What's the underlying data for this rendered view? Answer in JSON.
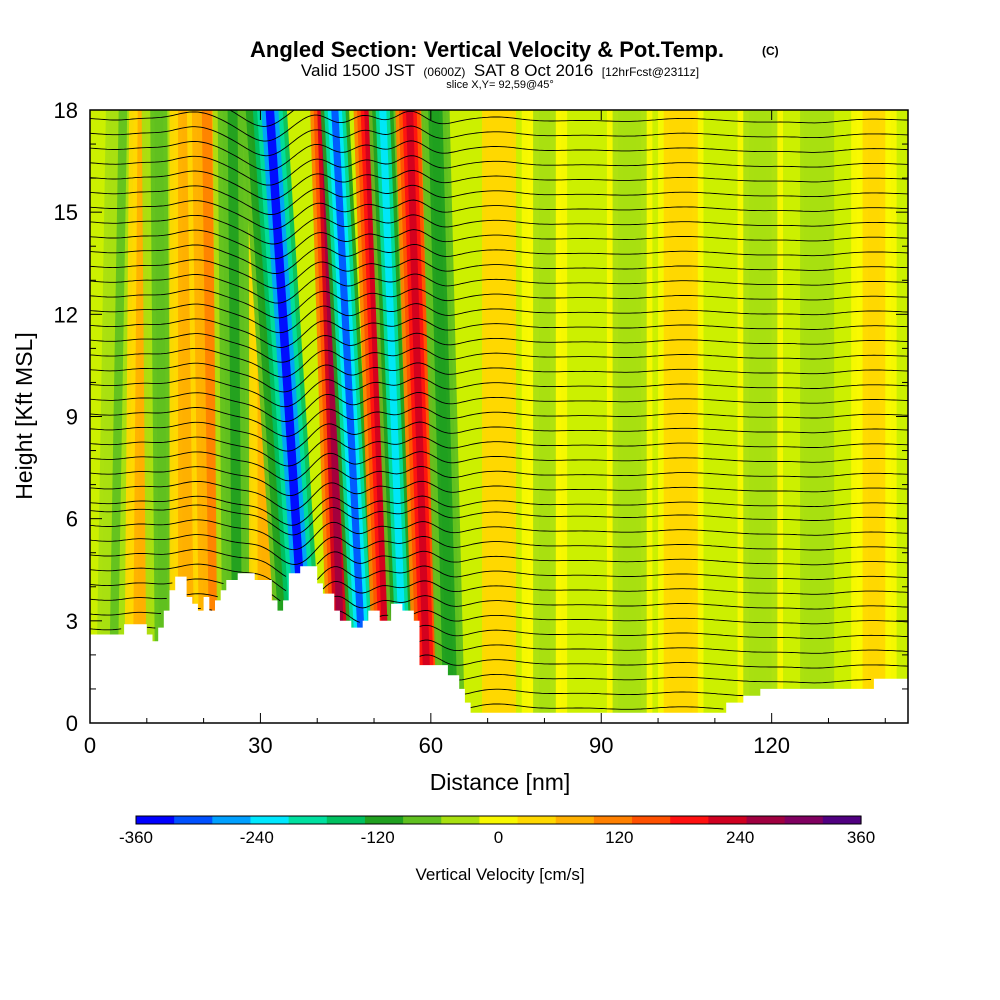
{
  "chart_data": {
    "type": "heatmap",
    "title": "Angled Section: Vertical Velocity & Pot.Temp.",
    "title_unit": "(C)",
    "subtitle_parts": [
      "Valid 1500 JST",
      "(0600Z)",
      "SAT 8 Oct 2016",
      "[12hrFcst@2311z]"
    ],
    "slice_info": "slice X,Y= 92,59@45°",
    "xlabel": "Distance [nm]",
    "ylabel": "Height [Kft MSL]",
    "xlim": [
      0,
      144
    ],
    "ylim": [
      0,
      18
    ],
    "x_ticks": [
      "0",
      "30",
      "60",
      "90",
      "120"
    ],
    "y_ticks": [
      "0",
      "3",
      "6",
      "9",
      "12",
      "15",
      "18"
    ],
    "colorbar": {
      "label": "Vertical Velocity [cm/s]",
      "ticks": [
        "-360",
        "-240",
        "-120",
        "0",
        "120",
        "240",
        "360"
      ],
      "range": [
        -360,
        360
      ],
      "colors": [
        "#0000ff",
        "#0050ff",
        "#00a0ff",
        "#00e8ff",
        "#00e0a0",
        "#00c060",
        "#20a020",
        "#60c020",
        "#a8e010",
        "#f8f800",
        "#ffd800",
        "#ffb000",
        "#ff8000",
        "#ff5000",
        "#ff1010",
        "#d00020",
        "#a00040",
        "#800060",
        "#500080"
      ]
    },
    "terrain_kft": [
      [
        0,
        2.6
      ],
      [
        6,
        2.6
      ],
      [
        6,
        2.9
      ],
      [
        10,
        2.9
      ],
      [
        10,
        2.6
      ],
      [
        11,
        2.6
      ],
      [
        11,
        2.4
      ],
      [
        12,
        2.4
      ],
      [
        12,
        2.8
      ],
      [
        13,
        2.8
      ],
      [
        13,
        3.3
      ],
      [
        14,
        3.3
      ],
      [
        14,
        3.9
      ],
      [
        15,
        3.9
      ],
      [
        15,
        4.3
      ],
      [
        17,
        4.3
      ],
      [
        17,
        3.7
      ],
      [
        18,
        3.7
      ],
      [
        18,
        3.5
      ],
      [
        19,
        3.5
      ],
      [
        19,
        3.3
      ],
      [
        20,
        3.3
      ],
      [
        20,
        3.7
      ],
      [
        21,
        3.7
      ],
      [
        21,
        3.3
      ],
      [
        22,
        3.3
      ],
      [
        22,
        3.6
      ],
      [
        23,
        3.6
      ],
      [
        23,
        3.9
      ],
      [
        24,
        3.9
      ],
      [
        24,
        4.2
      ],
      [
        26,
        4.2
      ],
      [
        26,
        4.4
      ],
      [
        29,
        4.4
      ],
      [
        29,
        4.2
      ],
      [
        32,
        4.2
      ],
      [
        32,
        3.6
      ],
      [
        33,
        3.6
      ],
      [
        33,
        3.3
      ],
      [
        34,
        3.3
      ],
      [
        34,
        3.6
      ],
      [
        35,
        3.6
      ],
      [
        35,
        4.4
      ],
      [
        37,
        4.4
      ],
      [
        37,
        4.6
      ],
      [
        40,
        4.6
      ],
      [
        40,
        4.1
      ],
      [
        41,
        4.1
      ],
      [
        41,
        3.8
      ],
      [
        43,
        3.8
      ],
      [
        43,
        3.3
      ],
      [
        44,
        3.3
      ],
      [
        44,
        3.0
      ],
      [
        46,
        3.0
      ],
      [
        46,
        2.8
      ],
      [
        48,
        2.8
      ],
      [
        48,
        3.0
      ],
      [
        49,
        3.0
      ],
      [
        49,
        3.3
      ],
      [
        51,
        3.3
      ],
      [
        51,
        3.0
      ],
      [
        53,
        3.0
      ],
      [
        53,
        3.5
      ],
      [
        55,
        3.5
      ],
      [
        55,
        3.3
      ],
      [
        57,
        3.3
      ],
      [
        57,
        3.0
      ],
      [
        58,
        3.0
      ],
      [
        58,
        1.7
      ],
      [
        63,
        1.7
      ],
      [
        63,
        1.4
      ],
      [
        65,
        1.4
      ],
      [
        65,
        1.0
      ],
      [
        66,
        1.0
      ],
      [
        66,
        0.6
      ],
      [
        67,
        0.6
      ],
      [
        67,
        0.3
      ],
      [
        112,
        0.3
      ],
      [
        112,
        0.6
      ],
      [
        115,
        0.6
      ],
      [
        115,
        0.8
      ],
      [
        118,
        0.8
      ],
      [
        118,
        1.0
      ],
      [
        138,
        1.0
      ],
      [
        138,
        1.3
      ],
      [
        144,
        1.3
      ]
    ],
    "velocity_bands": [
      {
        "x": 4,
        "w": 3,
        "lean": 0.1,
        "v": -60
      },
      {
        "x": 9,
        "w": 3,
        "lean": 0.05,
        "v": 80
      },
      {
        "x": 13,
        "w": 3,
        "lean": -0.05,
        "v": -80
      },
      {
        "x": 17,
        "w": 3,
        "lean": 0.0,
        "v": 70
      },
      {
        "x": 22,
        "w": 3.5,
        "lean": -0.08,
        "v": 110
      },
      {
        "x": 26,
        "w": 3.5,
        "lean": -0.05,
        "v": -110
      },
      {
        "x": 31,
        "w": 3,
        "lean": 0.0,
        "v": 70
      },
      {
        "x": 36.5,
        "w": 3,
        "lean": -0.38,
        "v": -160
      },
      {
        "x": 38.5,
        "w": 3,
        "lean": -0.38,
        "v": -330
      },
      {
        "x": 44.5,
        "w": 2.5,
        "lean": -0.18,
        "v": 270
      },
      {
        "x": 48.5,
        "w": 2.5,
        "lean": -0.3,
        "v": -300
      },
      {
        "x": 52.5,
        "w": 2.5,
        "lean": -0.2,
        "v": 220
      },
      {
        "x": 55.5,
        "w": 2.5,
        "lean": -0.22,
        "v": -210
      },
      {
        "x": 59.5,
        "w": 2.5,
        "lean": -0.18,
        "v": 230
      },
      {
        "x": 63.5,
        "w": 2.5,
        "lean": -0.15,
        "v": -130
      },
      {
        "x": 72,
        "w": 3,
        "lean": 0.0,
        "v": 50
      },
      {
        "x": 80,
        "w": 4,
        "lean": 0.0,
        "v": -30
      },
      {
        "x": 95,
        "w": 4,
        "lean": 0.0,
        "v": -35
      },
      {
        "x": 104,
        "w": 4,
        "lean": 0.0,
        "v": 35
      },
      {
        "x": 118,
        "w": 4,
        "lean": 0.0,
        "v": -35
      },
      {
        "x": 128,
        "w": 3,
        "lean": 0.0,
        "v": -45
      },
      {
        "x": 138,
        "w": 4,
        "lean": 0.0,
        "v": 30
      }
    ],
    "theta_contour_count": 42
  }
}
